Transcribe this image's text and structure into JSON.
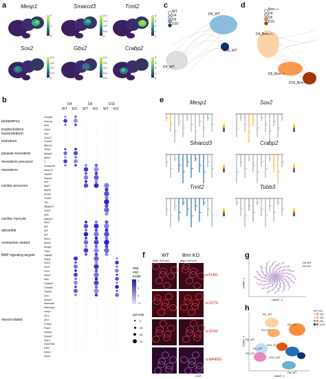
{
  "panel_a": {
    "letter": "a",
    "genes": [
      "Mesp1",
      "Smarcd3",
      "Tnnt2",
      "Sox2",
      "Gbx2",
      "Crabp2"
    ],
    "colorbars": [
      [
        "2",
        "1",
        "0"
      ],
      [
        "2.0",
        "1.5",
        "1.0",
        "0.5",
        "0"
      ],
      [
        "4",
        "3",
        "2",
        "1",
        "0"
      ],
      [
        "2.0",
        "1.5",
        "1.0",
        "0.5",
        "0"
      ],
      [
        "2.0",
        "1.5",
        "1.0",
        "0.5",
        "0.0"
      ],
      [
        "4",
        "3",
        "2",
        "1",
        "0"
      ]
    ]
  },
  "panel_b": {
    "letter": "b",
    "day_headers": [
      "D4",
      "D6",
      "D10"
    ],
    "cond_headers": [
      "WT",
      "KO",
      "WT",
      "KO",
      "WT",
      "KO"
    ],
    "categories": [
      "pluripotency",
      "trophectoderm",
      "mesendoderm",
      "endoderm",
      "paraxial mesoderm",
      "mesoderm precursor",
      "mesoderm",
      "cardiac precursor",
      "cardiac myocyte",
      "epicardial",
      "contraction related",
      "BMP signaling targets",
      "neural related"
    ],
    "genes": [
      "Pou5f1",
      "Nanog",
      "Klf4",
      "Cdx2",
      "Gsc",
      "Sox17",
      "Foxa2",
      "Meox1",
      "Tcf15",
      "Mesp1",
      "Mixl1",
      "T",
      "Smarcd3",
      "Nkx2-5",
      "Gata4",
      "Hand1",
      "Isl1",
      "Myl7",
      "Myh6",
      "Actn2",
      "Tnnt2",
      "Ttn",
      "Mybpc3",
      "Tcf21",
      "Wt1",
      "Atp2a2",
      "Ryr2",
      "Id1",
      "Id2",
      "Id3",
      "Msx1",
      "Msx2",
      "Bmp4",
      "Tbx3",
      "Hand2",
      "Pax6",
      "Sox1",
      "Sox2",
      "Otx2",
      "Gbx2",
      "Nes",
      "Crabp1",
      "Crabp2",
      "Tubb3",
      "Dcx",
      "Stmn2",
      "Neurod1",
      "Neurog1",
      "Hes5",
      "Zic1",
      "Zic2",
      "Foxg1",
      "Pax3",
      "Hoxb1",
      "Hoxa1",
      "Rarb",
      "Cyp26a1",
      "Dlk1",
      "Ntrk2",
      "Sox3"
    ],
    "legend_title": [
      "avg.",
      "exp.",
      "scale"
    ],
    "legend_ticks": [
      "2",
      "1",
      "0",
      "−1"
    ],
    "size_title": "pct.exp",
    "size_values": [
      "0",
      "25",
      "50",
      "75"
    ]
  },
  "panel_c": {
    "letter": "c",
    "legend": [
      {
        "label": "WT",
        "color": "#ffffff"
      },
      {
        "label": "D4",
        "color": "#d9d9d9"
      },
      {
        "label": "D6",
        "color": "#6baed6"
      },
      {
        "label": "D10",
        "color": "#08306b"
      }
    ],
    "labels": [
      "D6_WT",
      "D4_WT",
      "D10_WT"
    ]
  },
  "panel_d": {
    "letter": "d",
    "legend": [
      {
        "label": "Brm−/−",
        "color": "#ffffff"
      },
      {
        "label": "D4",
        "color": "#fdd0a2"
      },
      {
        "label": "D6",
        "color": "#fd8d3c"
      },
      {
        "label": "D10",
        "color": "#a63603"
      }
    ],
    "labels": [
      "D4_Brm−/−",
      "D6_Brm−/−",
      "D10_Brm−/−"
    ]
  },
  "panel_e": {
    "letter": "e",
    "genes": [
      "Mesp1",
      "Sox2",
      "Smarcd3",
      "Crabp2",
      "Tnnt2",
      "Tubb3"
    ]
  },
  "panel_f": {
    "letter": "f",
    "col_titles": [
      "WT",
      "Brm KO"
    ],
    "col_subtitles": [
      "Brg1-3xFLAG",
      "Brg1-3xFLAG"
    ],
    "channels": [
      "α-FLAG",
      "α-OCT4",
      "α-SOX2",
      "α-NANOG"
    ],
    "dapi": "DAPI"
  },
  "panel_g": {
    "letter": "g",
    "legend": [
      "D0-WT",
      "D0-KO"
    ],
    "xlabel": "UMAP_1",
    "ylabel": "UMAP_2",
    "colors": {
      "wt": "#9ecae1",
      "ko": "#e78ac3"
    }
  },
  "panel_h": {
    "letter": "h",
    "legend_title": "WT KO",
    "legend_items": [
      "D0",
      "D4",
      "D6",
      "D10"
    ],
    "labels": [
      "D4_WT",
      "D4_KO",
      "D6_KO",
      "D6_WT",
      "D0_KO",
      "D10_KO",
      "D0_WT",
      "D10_WT",
      "D6_WT"
    ],
    "xlabel": "UMAP_1",
    "ylabel": "UMAP_2"
  }
}
